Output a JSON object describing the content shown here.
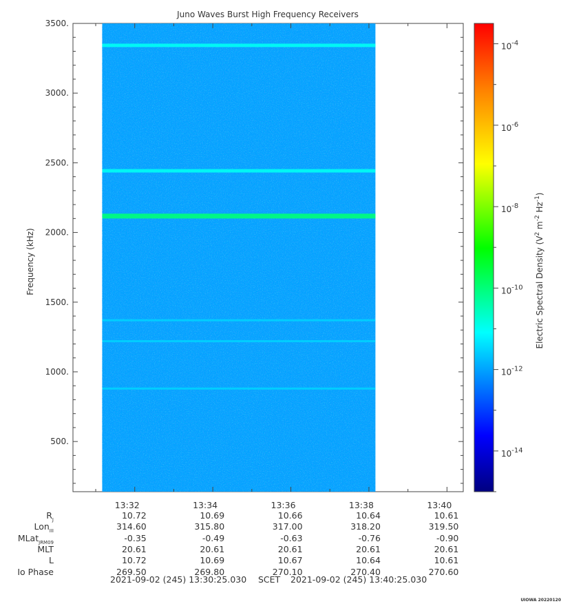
{
  "chart_data": {
    "type": "heatmap",
    "title": "Juno Waves Burst High Frequency Receivers",
    "ylabel": "Frequency (kHz)",
    "ylim": [
      140,
      3500
    ],
    "yticks": [
      500,
      1000,
      1500,
      2000,
      2500,
      3000,
      3500
    ],
    "ytick_labels": [
      "500.",
      "1000.",
      "1500.",
      "2000.",
      "2500.",
      "3000.",
      "3500."
    ],
    "xaxis": {
      "start": "13:30:25.030",
      "end": "13:40:25.030",
      "ticks": [
        "13:32",
        "13:34",
        "13:36",
        "13:38",
        "13:40"
      ]
    },
    "data_time_range": [
      "13:31:10",
      "13:38:10"
    ],
    "background_level": "1e-12",
    "emission_lines_khz": [
      {
        "freq": 3340,
        "level": "1e-11"
      },
      {
        "freq": 2440,
        "level": "1e-11"
      },
      {
        "freq": 2120,
        "level": "1e-10"
      },
      {
        "freq": 1370,
        "level": "3e-12"
      },
      {
        "freq": 1220,
        "level": "3e-12"
      },
      {
        "freq": 880,
        "level": "3e-12"
      }
    ],
    "colorbar": {
      "label": "Electric Spectral Density (V² m⁻² Hz⁻¹)",
      "label_base": "Electric Spectral Density (V",
      "label_mid": " m",
      "label_mid2": " Hz",
      "label_end": ")",
      "sup1": "2",
      "sup2": "-2",
      "sup3": "-1",
      "scale": "log",
      "range_exp": [
        -15,
        -3.5
      ],
      "tick_exponents": [
        -14,
        -12,
        -10,
        -8,
        -6,
        -4
      ],
      "tick_base": "10",
      "tick_sups": [
        "-14",
        "-12",
        "-10",
        "-8",
        "-6",
        "-4"
      ],
      "colormap": [
        "#000080",
        "#0000ff",
        "#00ffff",
        "#00ff00",
        "#ffff00",
        "#ff8000",
        "#ff0000"
      ]
    }
  },
  "ephemeris": {
    "labels": [
      {
        "main": "R",
        "sub": "J"
      },
      {
        "main": "Lon",
        "sub": "III"
      },
      {
        "main": "MLat",
        "sub": "JRM09"
      },
      {
        "main": "MLT",
        "sub": ""
      },
      {
        "main": "L",
        "sub": ""
      },
      {
        "main": "Io Phase",
        "sub": ""
      }
    ],
    "columns": [
      [
        "10.72",
        "314.60",
        "-0.35",
        "20.61",
        "10.72",
        "269.50"
      ],
      [
        "10.69",
        "315.80",
        "-0.49",
        "20.61",
        "10.69",
        "269.80"
      ],
      [
        "10.66",
        "317.00",
        "-0.63",
        "20.61",
        "10.67",
        "270.10"
      ],
      [
        "10.64",
        "318.20",
        "-0.76",
        "20.61",
        "10.64",
        "270.40"
      ],
      [
        "10.61",
        "319.50",
        "-0.90",
        "20.61",
        "10.61",
        "270.60"
      ]
    ]
  },
  "footer": {
    "start": "2021-09-02 (245) 13:30:25.030",
    "frame": "SCET",
    "end": "2021-09-02 (245) 13:40:25.030"
  },
  "credit": "UIOWA 20220120"
}
